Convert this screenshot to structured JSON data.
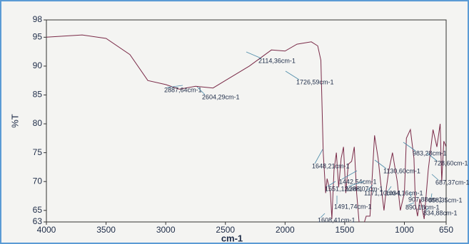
{
  "chart_data": {
    "type": "line",
    "ylabel": "%T",
    "xlabel": "cm-1",
    "color": "#7a2a48",
    "xlim": [
      4000,
      650
    ],
    "xticks": [
      4000,
      3500,
      3000,
      2500,
      2000,
      1500,
      1000,
      650
    ],
    "ylim": [
      63,
      98
    ],
    "yticks": [
      63,
      65,
      70,
      75,
      80,
      85,
      90,
      95,
      98
    ],
    "x": [
      4000,
      3700,
      3500,
      3300,
      3150,
      3000,
      2887,
      2750,
      2604,
      2500,
      2300,
      2114,
      2000,
      1900,
      1780,
      1726,
      1700,
      1680,
      1660,
      1648,
      1620,
      1608,
      1590,
      1570,
      1551,
      1530,
      1510,
      1491,
      1470,
      1442,
      1420,
      1400,
      1380,
      1350,
      1320,
      1288,
      1250,
      1220,
      1200,
      1171,
      1150,
      1130,
      1100,
      1060,
      1034,
      1000,
      983,
      950,
      920,
      907,
      890,
      870,
      858,
      834,
      800,
      760,
      728,
      700,
      687,
      670,
      650
    ],
    "values": [
      95,
      95.4,
      94.8,
      92,
      87.5,
      86.8,
      86,
      86.5,
      86.2,
      87.5,
      90,
      92.8,
      92.6,
      93.8,
      94.2,
      93.5,
      91,
      75,
      68,
      70.5,
      68,
      63.5,
      72,
      75,
      69,
      74,
      76,
      68,
      73,
      73.5,
      76,
      68,
      63,
      62,
      64,
      64,
      78,
      74,
      70,
      65,
      69,
      72,
      75,
      70,
      65,
      68,
      77.5,
      79,
      74,
      66,
      64,
      67,
      66,
      63.5,
      72,
      79,
      76,
      80,
      70,
      77,
      76
    ],
    "annotations": [
      "2887,64cm-1",
      "2604,29cm-1",
      "2114,36cm-1",
      "1726,59cm-1",
      "1648,21cm-1",
      "1442,54cm-1",
      "1551,12cm-1",
      "1288,07cm-1",
      "1491,74cm-1",
      "1608,41cm-1",
      "1130,60cm-1",
      "1171,10cm-1",
      "1034,16cm-1",
      "983,28cm-1",
      "728,60cm-1",
      "687,37cm-1",
      "907,88cm-1",
      "858,35cm-1",
      "890,18cm-1",
      "834,88cm-1"
    ]
  }
}
